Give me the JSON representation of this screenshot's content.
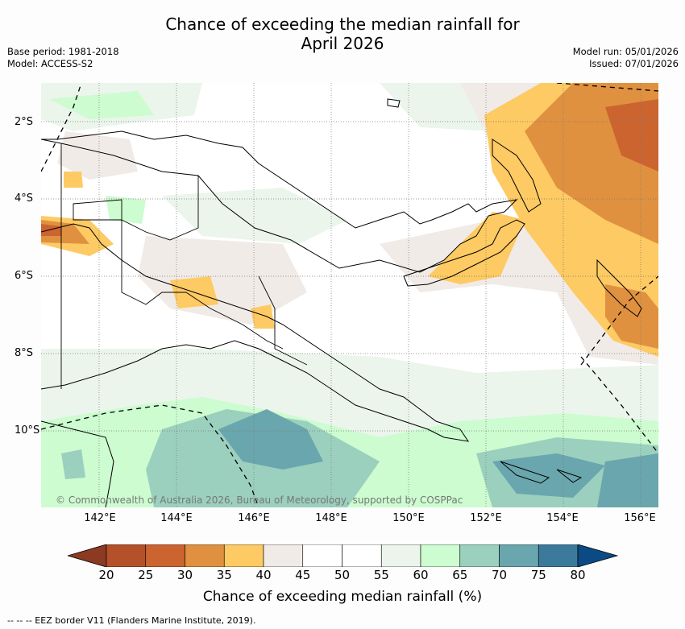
{
  "title_line1": "Chance of exceeding the median rainfall for",
  "title_line2": "April 2026",
  "base_period": "Base period: 1981-2018",
  "model": "Model: ACCESS-S2",
  "model_run": "Model run: 05/01/2026",
  "issued": "Issued: 07/01/2026",
  "lat_labels": [
    "2°S",
    "4°S",
    "6°S",
    "8°S",
    "10°S"
  ],
  "lon_labels": [
    "142°E",
    "144°E",
    "146°E",
    "148°E",
    "150°E",
    "152°E",
    "154°E",
    "156°E"
  ],
  "copyright": "© Commonwealth of Australia 2026, Bureau of Meteorology, supported by COSPPac",
  "colorbar": {
    "ticks": [
      "20",
      "25",
      "30",
      "35",
      "40",
      "45",
      "50",
      "55",
      "60",
      "65",
      "70",
      "75",
      "80"
    ],
    "label": "Chance of exceeding median rainfall (%)",
    "colors": [
      "#b4502a",
      "#cc6430",
      "#e0913f",
      "#fdca63",
      "#f1ebe7",
      "#ffffff",
      "#ffffff",
      "#ebf5ec",
      "#ccfccf",
      "#9bd0be",
      "#6aa6ad",
      "#3c7a9c"
    ],
    "under_color": "#8c3a22",
    "over_color": "#0b4a85"
  },
  "eez_note": "--  --  -- EEZ border V11 (Flanders Marine Institute, 2019)."
}
